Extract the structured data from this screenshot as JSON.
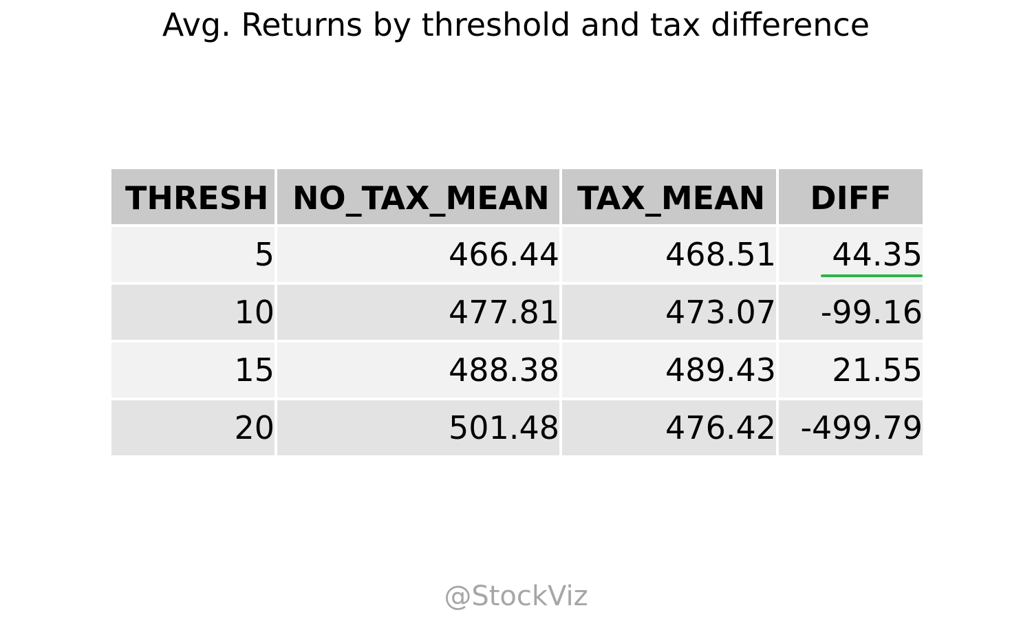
{
  "title": "Avg. Returns by threshold and tax difference",
  "watermark": "@StockViz",
  "colors": {
    "header_bg": "#c9c9c9",
    "row_odd_bg": "#f2f2f2",
    "row_even_bg": "#e3e3e3",
    "highlight_underline": "#2db34a"
  },
  "chart_data": {
    "type": "table",
    "title": "Avg. Returns by threshold and tax difference",
    "columns": [
      "THRESH",
      "NO_TAX_MEAN",
      "TAX_MEAN",
      "DIFF"
    ],
    "rows": [
      [
        "5",
        "466.44",
        "468.51",
        "44.35"
      ],
      [
        "10",
        "477.81",
        "473.07",
        "-99.16"
      ],
      [
        "15",
        "488.38",
        "489.43",
        "21.55"
      ],
      [
        "20",
        "501.48",
        "476.42",
        "-499.79"
      ]
    ],
    "highlighted_cell": {
      "row": 0,
      "column": 3
    }
  }
}
